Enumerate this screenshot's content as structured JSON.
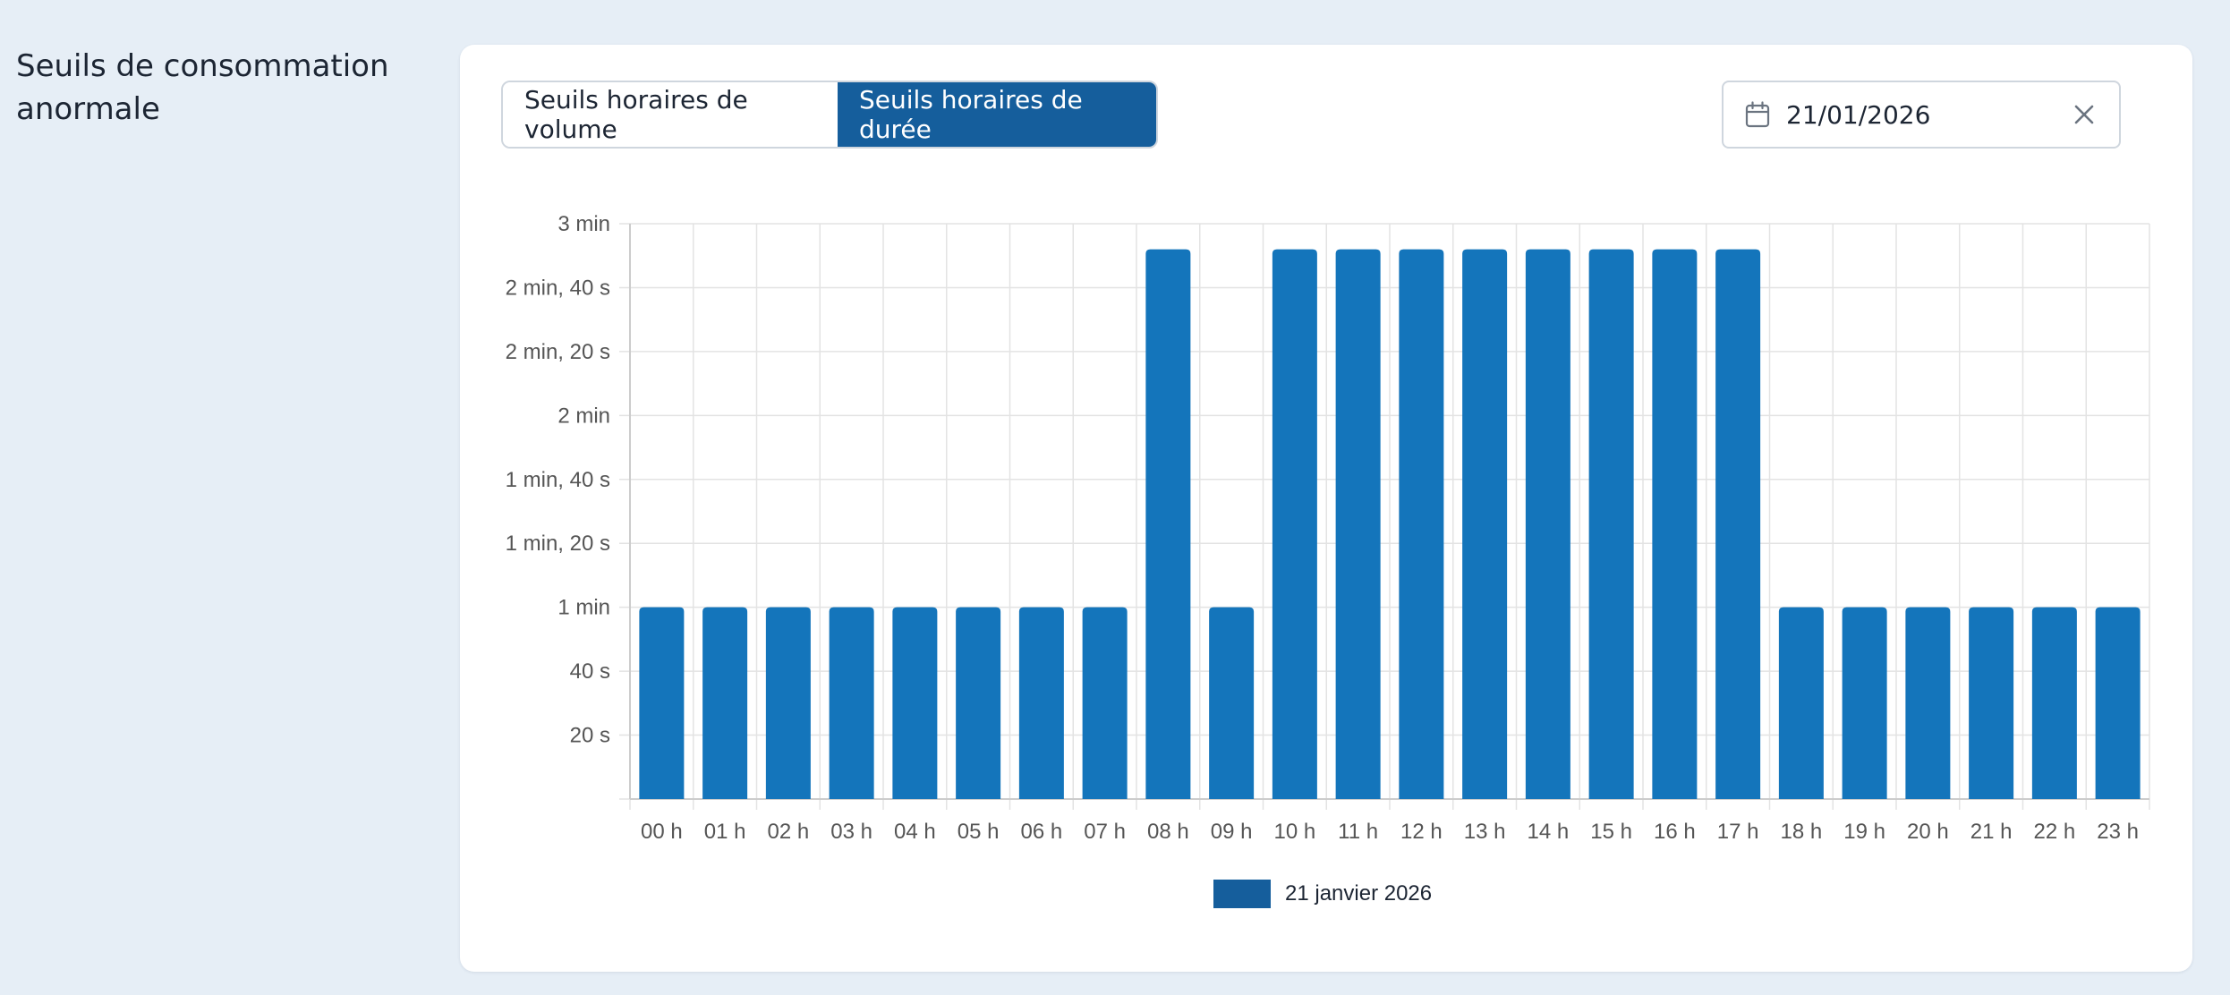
{
  "section": {
    "title": "Seuils de consommation anormale"
  },
  "toggle": {
    "volume_label": "Seuils horaires de volume",
    "duree_label": "Seuils horaires de durée",
    "active": "duree"
  },
  "date_filter": {
    "value": "21/01/2026",
    "icon": "calendar-icon",
    "clear_icon": "close-icon"
  },
  "colors": {
    "accent": "#155e9c",
    "bar": "#1475bb",
    "page_background": "#e6eef6",
    "grid": "#e3e3e3",
    "tick_text": "#555555"
  },
  "chart_data": {
    "type": "bar",
    "title": "",
    "xlabel": "",
    "ylabel": "",
    "categories": [
      "00 h",
      "01 h",
      "02 h",
      "03 h",
      "04 h",
      "05 h",
      "06 h",
      "07 h",
      "08 h",
      "09 h",
      "10 h",
      "11 h",
      "12 h",
      "13 h",
      "14 h",
      "15 h",
      "16 h",
      "17 h",
      "18 h",
      "19 h",
      "20 h",
      "21 h",
      "22 h",
      "23 h"
    ],
    "unit": "seconds",
    "series": [
      {
        "name": "21 janvier 2026",
        "values": [
          60,
          60,
          60,
          60,
          60,
          60,
          60,
          60,
          172,
          60,
          172,
          172,
          172,
          172,
          172,
          172,
          172,
          172,
          60,
          60,
          60,
          60,
          60,
          60
        ]
      }
    ],
    "ylim": [
      0,
      180
    ],
    "yticks": [
      {
        "value": 20,
        "label": "20 s"
      },
      {
        "value": 40,
        "label": "40 s"
      },
      {
        "value": 60,
        "label": "1 min"
      },
      {
        "value": 80,
        "label": "1 min, 20 s"
      },
      {
        "value": 100,
        "label": "1 min, 40 s"
      },
      {
        "value": 120,
        "label": "2 min"
      },
      {
        "value": 140,
        "label": "2 min, 20 s"
      },
      {
        "value": 160,
        "label": "2 min, 40 s"
      },
      {
        "value": 180,
        "label": "3 min"
      }
    ],
    "grid": true,
    "legend_position": "bottom-center"
  }
}
